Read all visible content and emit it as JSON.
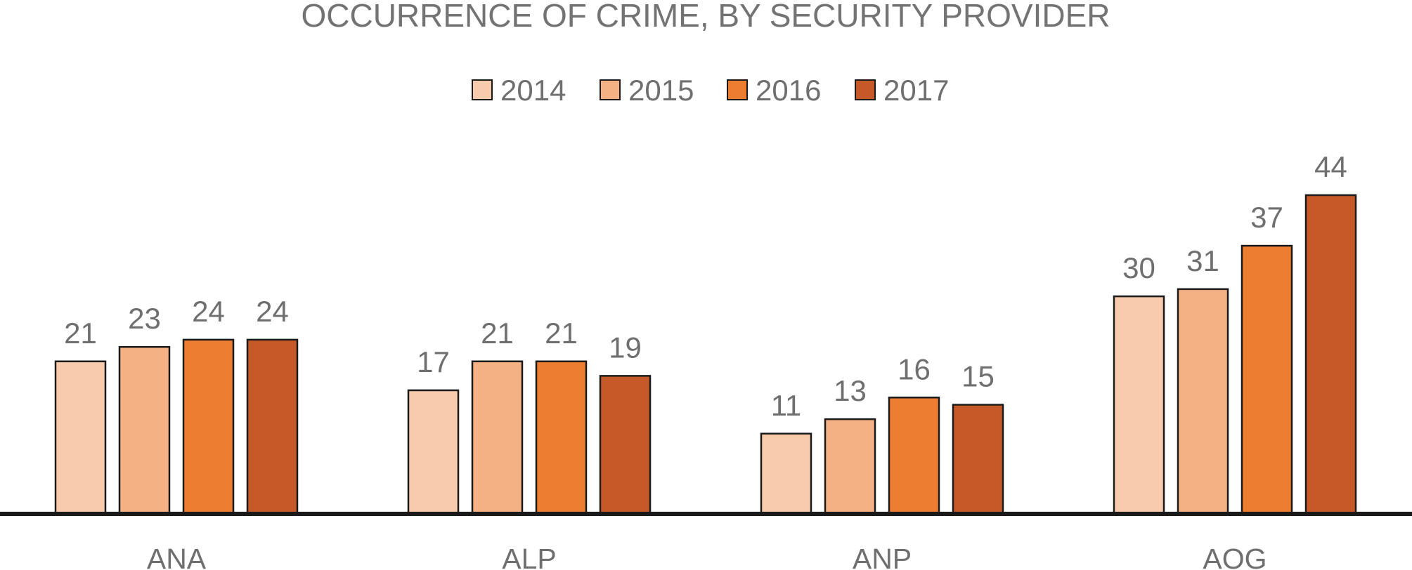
{
  "colors": {
    "2014": "#f8cbad",
    "2015": "#f4b183",
    "2016": "#ed7d31",
    "2017": "#c55a28",
    "text": "#737373",
    "axis": "#1a1a1a",
    "bar_stroke": "#1a1a1a"
  },
  "chart_data": {
    "type": "bar",
    "title": "OCCURRENCE OF CRIME, BY SECURITY PROVIDER",
    "xlabel": "",
    "ylabel": "",
    "categories": [
      "ANA",
      "ALP",
      "ANP",
      "AOG"
    ],
    "series": [
      {
        "name": "2014",
        "values": [
          21,
          17,
          11,
          30
        ]
      },
      {
        "name": "2015",
        "values": [
          23,
          21,
          13,
          31
        ]
      },
      {
        "name": "2016",
        "values": [
          24,
          21,
          16,
          37
        ]
      },
      {
        "name": "2017",
        "values": [
          24,
          19,
          15,
          44
        ]
      }
    ],
    "ylim": [
      0,
      44
    ],
    "grid": false,
    "legend_position": "top-center",
    "data_labels": true
  }
}
